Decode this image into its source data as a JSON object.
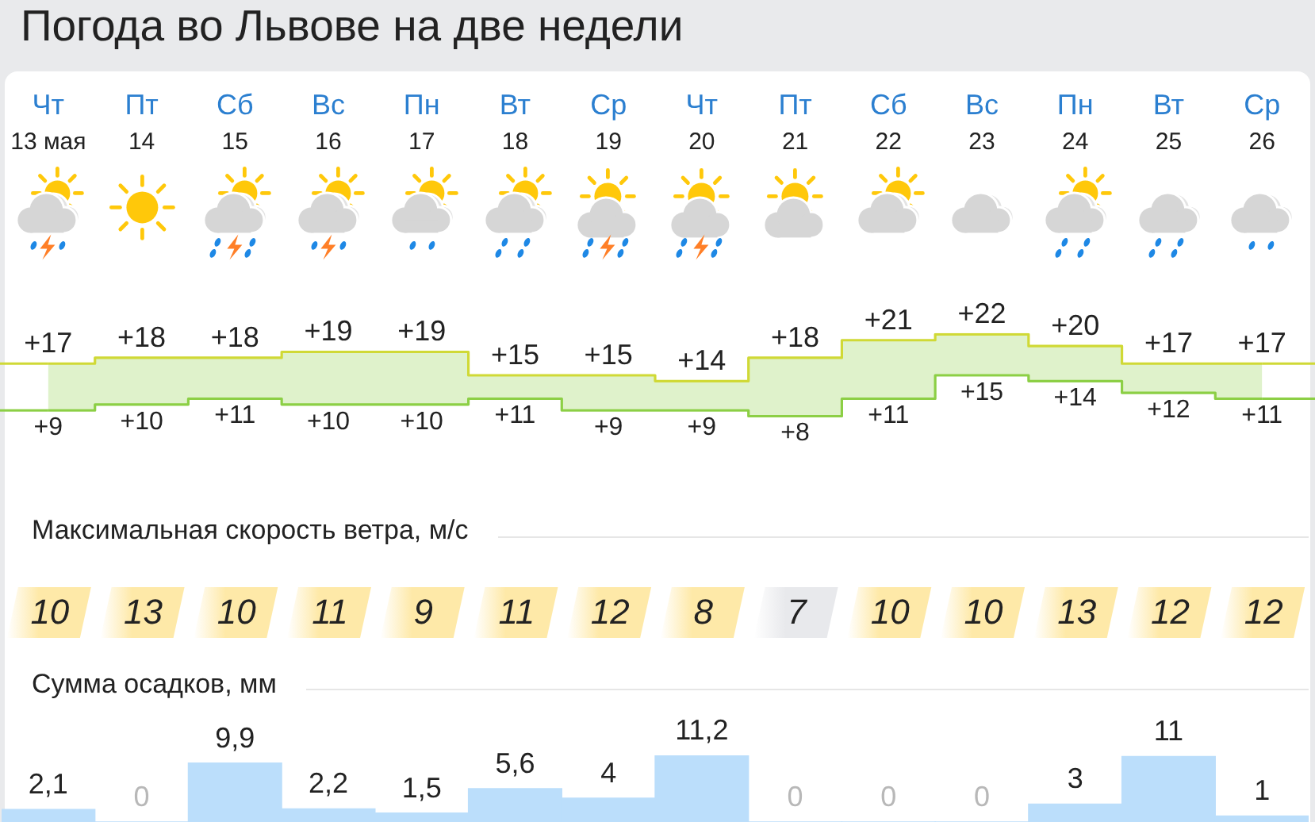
{
  "chart_data": [
    {
      "type": "step",
      "title": "Погода во Львове на две недели",
      "categories": [
        "Чт\n13 мая",
        "Пт\n14",
        "Сб\n15",
        "Вс\n16",
        "Пн\n17",
        "Вт\n18",
        "Ср\n19",
        "Чт\n20",
        "Пт\n21",
        "Сб\n22",
        "Вс\n23",
        "Пн\n24",
        "Вт\n25",
        "Ср\n26"
      ],
      "tick_labels": "x",
      "series": [
        {
          "color": "#d0d936",
          "values": [
            17,
            18,
            18,
            19,
            19,
            15,
            15,
            14,
            18,
            21,
            22,
            20,
            17,
            17
          ],
          "value_labels": [
            "+17",
            "+18",
            "+18",
            "+19",
            "+19",
            "+15",
            "+15",
            "+14",
            "+18",
            "+21",
            "+22",
            "+20",
            "+17",
            "+17"
          ]
        },
        {
          "color": "#8ccf45",
          "values": [
            9,
            10,
            11,
            10,
            10,
            11,
            9,
            9,
            8,
            11,
            15,
            14,
            12,
            11
          ],
          "value_labels": [
            "+9",
            "+10",
            "+11",
            "+10",
            "+10",
            "+11",
            "+9",
            "+9",
            "+8",
            "+11",
            "+15",
            "+14",
            "+12",
            "+11"
          ],
          "lower": [
            9,
            10,
            11,
            10,
            10,
            11,
            9,
            9,
            8,
            11,
            15,
            14,
            12,
            11
          ],
          "upper": [
            17,
            18,
            18,
            19,
            19,
            15,
            15,
            14,
            18,
            21,
            22,
            20,
            17,
            17
          ]
        }
      ]
    },
    {
      "type": "other",
      "title": "Максимальная скорость ветра, м/с",
      "categories": [
        null,
        null,
        null,
        null,
        null,
        null,
        null,
        null,
        null,
        null,
        null,
        null,
        null,
        null
      ],
      "values": [
        10,
        13,
        10,
        11,
        9,
        11,
        12,
        8,
        7,
        10,
        10,
        13,
        12,
        12
      ],
      "colors": [
        "#fee9a8",
        "#fee9a8",
        "#fee9a8",
        "#fee9a8",
        "#fee9a8",
        "#fee9a8",
        "#fee9a8",
        "#fee9a8",
        "#e8e9ec",
        "#fee9a8",
        "#fee9a8",
        "#fee9a8",
        "#fee9a8",
        "#fee9a8"
      ],
      "data_labels": true
    },
    {
      "type": "bar",
      "title": "Сумма осадков, мм",
      "categories": [
        null,
        null,
        null,
        null,
        null,
        null,
        null,
        null,
        null,
        null,
        null,
        null,
        null,
        null
      ],
      "tick_labels": false,
      "values": [
        2.1,
        0,
        9.9,
        2.2,
        1.5,
        5.6,
        4,
        11.2,
        0,
        0,
        0,
        3,
        11,
        1
      ],
      "value_labels": [
        "2,1",
        "0",
        "9,9",
        "2,2",
        "1,5",
        "5,6",
        "4",
        "11,2",
        "0",
        "0",
        "0",
        "3",
        "11",
        "1"
      ],
      "color": "#bbdefb"
    }
  ]
}
